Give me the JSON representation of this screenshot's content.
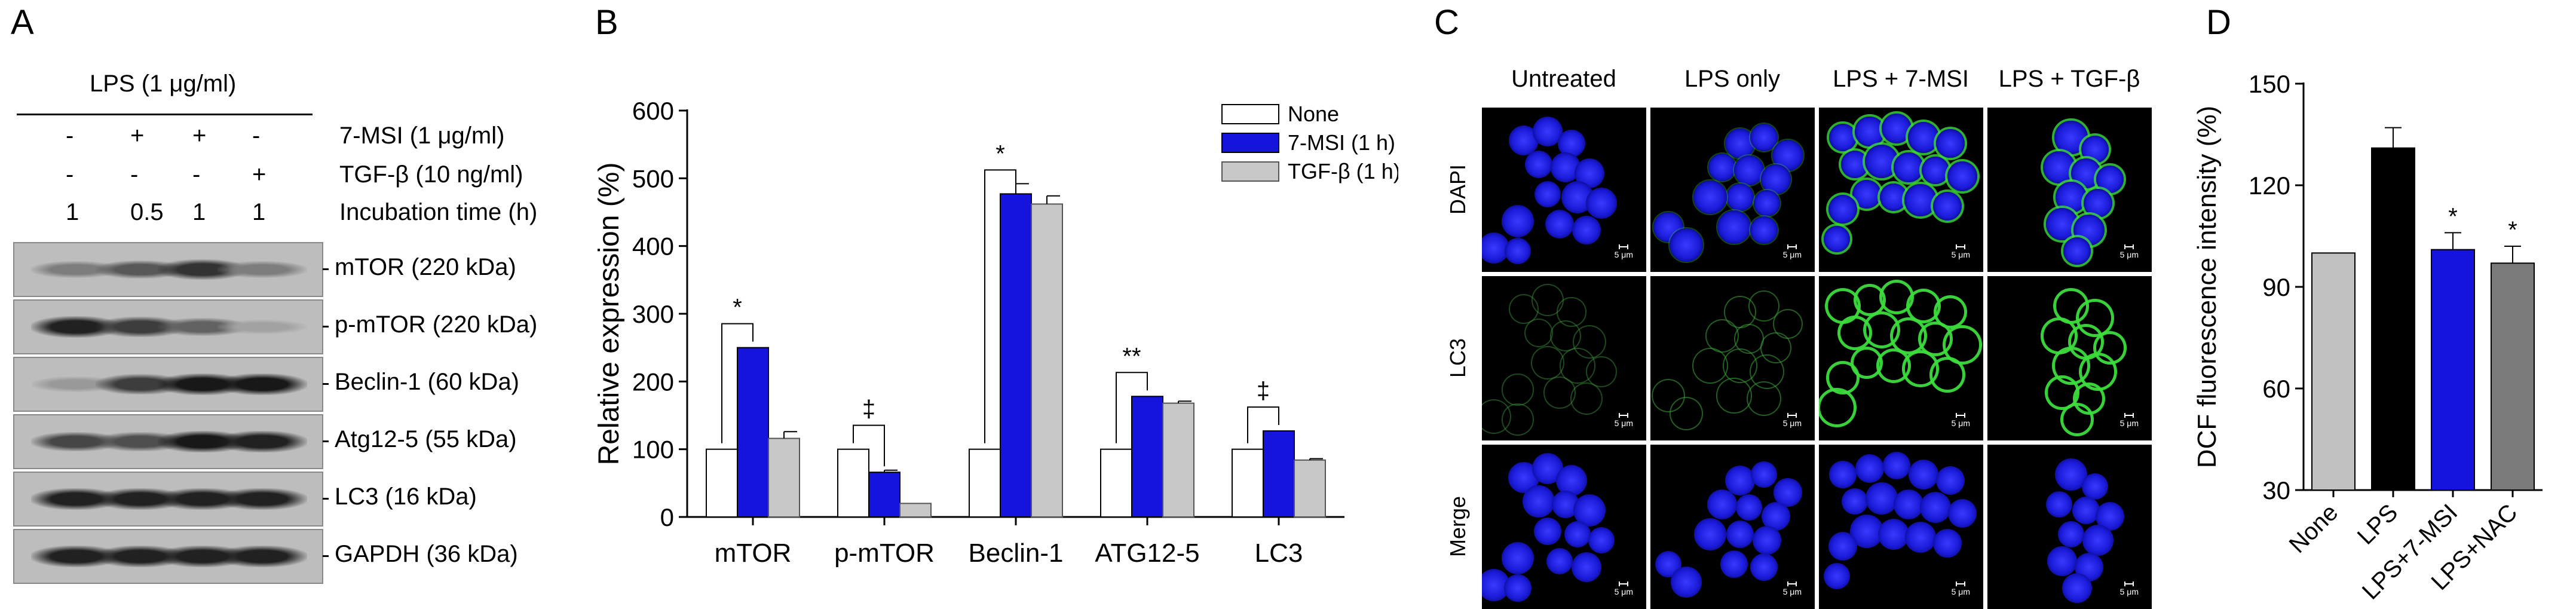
{
  "panel_a": {
    "letter": "A",
    "lps_header": "LPS (1 μg/ml)",
    "treatment_rows": [
      {
        "label": "7-MSI (1 μg/ml)",
        "values": [
          "-",
          "+",
          "+",
          "-"
        ]
      },
      {
        "label": "TGF-β (10 ng/ml)",
        "values": [
          "-",
          "-",
          "-",
          "+"
        ]
      },
      {
        "label": "Incubation time (h)",
        "values": [
          "1",
          "0.5",
          "1",
          "1"
        ]
      }
    ],
    "blots": [
      {
        "label": "mTOR (220 kDa)",
        "intensities": [
          0.35,
          0.55,
          0.75,
          0.35
        ]
      },
      {
        "label": "p-mTOR (220 kDa)",
        "intensities": [
          0.85,
          0.7,
          0.5,
          0.15
        ]
      },
      {
        "label": "Beclin-1 (60 kDa)",
        "intensities": [
          0.2,
          0.7,
          0.9,
          0.9
        ]
      },
      {
        "label": "Atg12-5 (55 kDa)",
        "intensities": [
          0.65,
          0.6,
          0.9,
          0.85
        ]
      },
      {
        "label": "LC3 (16 kDa)",
        "intensities": [
          0.85,
          0.85,
          0.85,
          0.85
        ]
      },
      {
        "label": "GAPDH (36 kDa)",
        "intensities": [
          0.85,
          0.85,
          0.85,
          0.85
        ]
      }
    ]
  },
  "panel_b": {
    "letter": "B"
  },
  "panel_c": {
    "letter": "C",
    "columns": [
      "Untreated",
      "LPS only",
      "LPS + 7-MSI",
      "LPS + TGF-β"
    ],
    "rows": [
      "DAPI",
      "LC3",
      "Merge"
    ],
    "scale_label": "5 μm"
  },
  "panel_d": {
    "letter": "D"
  },
  "chart_data": [
    {
      "type": "bar",
      "panel": "B",
      "ylabel": "Relative expression (%)",
      "xlabel": "",
      "ylim": [
        0,
        600
      ],
      "yticks": [
        0,
        100,
        200,
        300,
        400,
        500,
        600
      ],
      "categories": [
        "mTOR",
        "p-mTOR",
        "Beclin-1",
        "ATG12-5",
        "LC3"
      ],
      "legend_position": "top-right",
      "series": [
        {
          "name": "None",
          "color": "#ffffff",
          "values": [
            100,
            100,
            100,
            100,
            100
          ],
          "errors": [
            0,
            0,
            0,
            0,
            0
          ]
        },
        {
          "name": "7-MSI (1 h)",
          "color": "#1414dc",
          "values": [
            250,
            66,
            477,
            178,
            127
          ],
          "errors": [
            0,
            3,
            15,
            0,
            0
          ]
        },
        {
          "name": "TGF-β (1 h)",
          "color": "#c8c8c8",
          "values": [
            116,
            20,
            462,
            168,
            84
          ],
          "errors": [
            10,
            0,
            12,
            3,
            2
          ]
        }
      ],
      "annotations": [
        {
          "category": "mTOR",
          "text": "*"
        },
        {
          "category": "p-mTOR",
          "text": "‡"
        },
        {
          "category": "Beclin-1",
          "text": "*"
        },
        {
          "category": "ATG12-5",
          "text": "**"
        },
        {
          "category": "LC3",
          "text": "‡"
        }
      ]
    },
    {
      "type": "bar",
      "panel": "D",
      "ylabel": "DCF fluorescence intensity (%)",
      "xlabel": "",
      "ylim": [
        30,
        150
      ],
      "yticks": [
        30,
        60,
        90,
        120,
        150
      ],
      "categories": [
        "None",
        "LPS",
        "LPS+7-MSI",
        "LPS+NAC"
      ],
      "values": [
        100,
        131,
        101,
        97
      ],
      "errors": [
        0,
        6,
        5,
        5
      ],
      "colors": [
        "#c0c0c0",
        "#000000",
        "#1414dc",
        "#7a7a7a"
      ],
      "annotations": [
        "",
        "",
        "*",
        "*"
      ]
    }
  ]
}
